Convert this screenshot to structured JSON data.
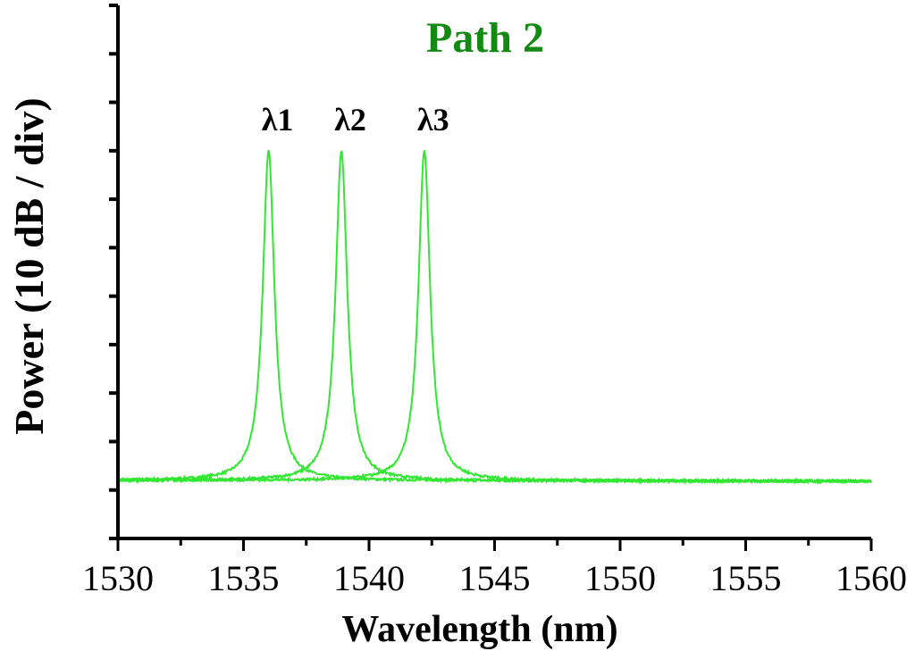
{
  "chart_data": {
    "type": "line",
    "title": "Path 2",
    "title_color": "#138a13",
    "xlabel": "Wavelength (nm)",
    "ylabel": "Power (10 dB / div)",
    "xlim": [
      1530,
      1560
    ],
    "ylim": [
      0,
      11
    ],
    "x_ticks": [
      "1530",
      "1535",
      "1540",
      "1545",
      "1550",
      "1555",
      "1560"
    ],
    "y_tick_count": 11,
    "grid": false,
    "line_color": "#33e633",
    "noise_floor": 1.2,
    "x_range": [
      1530,
      1560
    ],
    "series": [
      {
        "center": 1536.0,
        "peak": 8.0
      },
      {
        "center": 1538.9,
        "peak": 8.0
      },
      {
        "center": 1542.2,
        "peak": 8.0
      }
    ],
    "annotations": [
      {
        "text": "λ1",
        "x": 1536.0
      },
      {
        "text": "λ2",
        "x": 1538.9
      },
      {
        "text": "λ3",
        "x": 1542.2
      }
    ]
  }
}
